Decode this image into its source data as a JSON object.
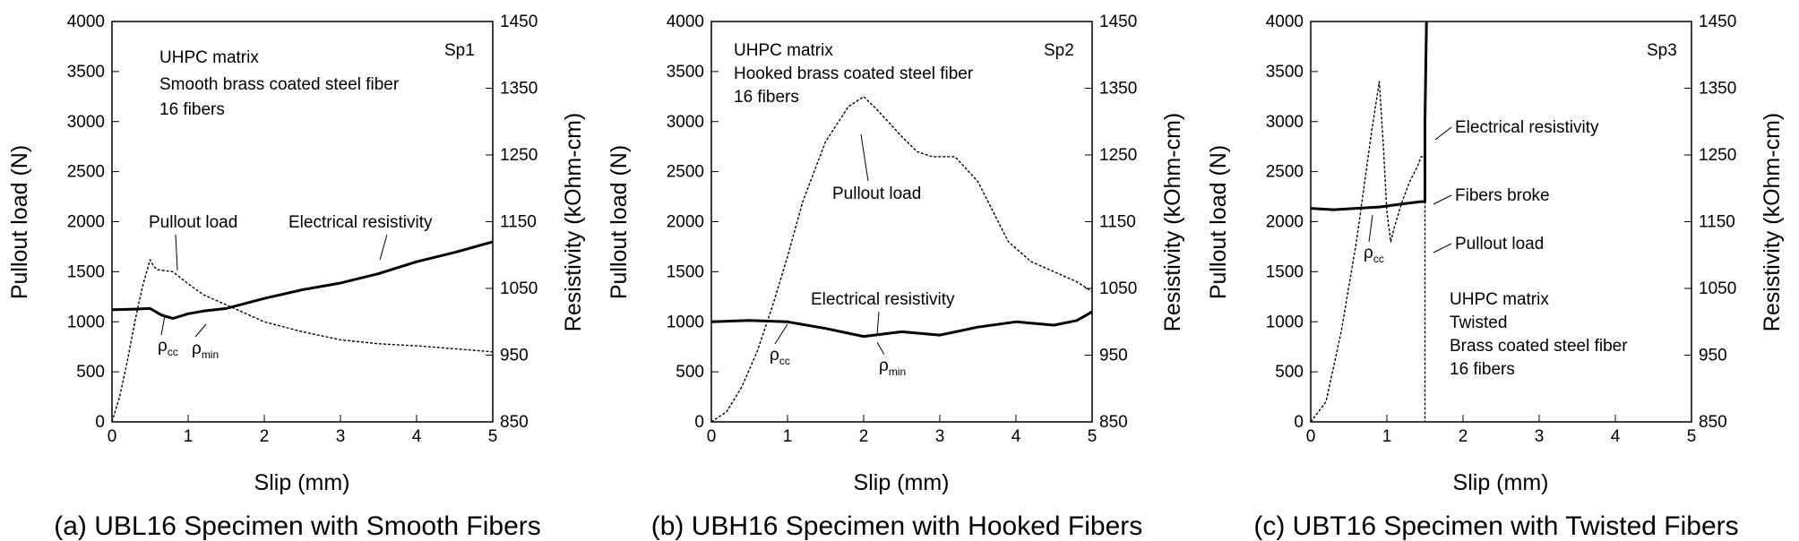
{
  "chart_data": [
    {
      "type": "line",
      "caption": "(a) UBL16 Specimen with Smooth Fibers",
      "xlabel": "Slip (mm)",
      "ylabel": "Pullout load (N)",
      "y2label": "Resistivity (kOhm-cm)",
      "xlim": [
        0,
        5
      ],
      "ylim": [
        0,
        4000
      ],
      "y2lim": [
        850,
        1450
      ],
      "x_ticks": [
        "0",
        "1",
        "2",
        "3",
        "4",
        "5"
      ],
      "y_ticks": [
        "0",
        "500",
        "1000",
        "1500",
        "2000",
        "2500",
        "3000",
        "3500",
        "4000"
      ],
      "y2_ticks": [
        "850",
        "950",
        "1050",
        "1150",
        "1250",
        "1350",
        "1450"
      ],
      "grid": false,
      "annotations": {
        "specimen": "Sp1",
        "matrix": "UHPC matrix",
        "fiber": "Smooth brass coated steel fiber",
        "count": "16 fibers",
        "load": "Pullout load",
        "resistivity": "Electrical resistivity",
        "rho": "ρ",
        "sub_cc": "cc",
        "sub_min": "min"
      },
      "series": [
        {
          "name": "Pullout load",
          "axis": "left",
          "x": [
            0,
            0.1,
            0.2,
            0.3,
            0.4,
            0.5,
            0.55,
            0.6,
            0.8,
            1.0,
            1.2,
            1.5,
            2.0,
            2.5,
            3.0,
            3.5,
            4.0,
            4.5,
            5.0
          ],
          "y": [
            0,
            250,
            600,
            1000,
            1350,
            1620,
            1550,
            1520,
            1500,
            1380,
            1270,
            1170,
            1000,
            900,
            820,
            780,
            760,
            730,
            700
          ]
        },
        {
          "name": "Electrical resistivity",
          "axis": "right",
          "x": [
            0,
            0.3,
            0.5,
            0.65,
            0.8,
            1.0,
            1.2,
            1.5,
            2.0,
            2.5,
            3.0,
            3.5,
            4.0,
            4.5,
            5.0
          ],
          "y": [
            1018,
            1019,
            1020,
            1010,
            1005,
            1012,
            1016,
            1020,
            1035,
            1048,
            1058,
            1072,
            1090,
            1104,
            1120
          ]
        }
      ]
    },
    {
      "type": "line",
      "caption": "(b) UBH16 Specimen with Hooked Fibers",
      "xlabel": "Slip (mm)",
      "ylabel": "Pullout load (N)",
      "y2label": "Resistivity (kOhm-cm)",
      "xlim": [
        0,
        5
      ],
      "ylim": [
        0,
        4000
      ],
      "y2lim": [
        850,
        1450
      ],
      "x_ticks": [
        "0",
        "1",
        "2",
        "3",
        "4",
        "5"
      ],
      "y_ticks": [
        "0",
        "500",
        "1000",
        "1500",
        "2000",
        "2500",
        "3000",
        "3500",
        "4000"
      ],
      "y2_ticks": [
        "850",
        "950",
        "1050",
        "1150",
        "1250",
        "1350",
        "1450"
      ],
      "grid": false,
      "annotations": {
        "specimen": "Sp2",
        "matrix": "UHPC matrix",
        "fiber": "Hooked brass coated steel fiber",
        "count": "16 fibers",
        "load": "Pullout load",
        "resistivity": "Electrical resistivity",
        "rho": "ρ",
        "sub_cc": "cc",
        "sub_min": "min"
      },
      "series": [
        {
          "name": "Pullout load",
          "axis": "left",
          "x": [
            0,
            0.2,
            0.4,
            0.6,
            0.8,
            1.0,
            1.2,
            1.5,
            1.8,
            2.0,
            2.2,
            2.5,
            2.7,
            2.9,
            3.2,
            3.5,
            3.7,
            3.9,
            4.2,
            4.5,
            4.8,
            5.0
          ],
          "y": [
            0,
            100,
            350,
            700,
            1150,
            1650,
            2200,
            2800,
            3150,
            3250,
            3100,
            2850,
            2700,
            2650,
            2650,
            2400,
            2100,
            1800,
            1600,
            1500,
            1400,
            1300
          ]
        },
        {
          "name": "Electrical resistivity",
          "axis": "right",
          "x": [
            0,
            0.5,
            1.0,
            1.5,
            2.0,
            2.5,
            3.0,
            3.5,
            4.0,
            4.5,
            4.8,
            5.0
          ],
          "y": [
            1000,
            1002,
            1000,
            990,
            978,
            985,
            980,
            992,
            1000,
            995,
            1002,
            1015
          ]
        }
      ]
    },
    {
      "type": "line",
      "caption": "(c) UBT16 Specimen with Twisted Fibers",
      "xlabel": "Slip (mm)",
      "ylabel": "Pullout load (N)",
      "y2label": "Resistivity (kOhm-cm)",
      "xlim": [
        0,
        5
      ],
      "ylim": [
        0,
        4000
      ],
      "y2lim": [
        850,
        1450
      ],
      "x_ticks": [
        "0",
        "1",
        "2",
        "3",
        "4",
        "5"
      ],
      "y_ticks": [
        "0",
        "500",
        "1000",
        "1500",
        "2000",
        "2500",
        "3000",
        "3500",
        "4000"
      ],
      "y2_ticks": [
        "850",
        "950",
        "1050",
        "1150",
        "1250",
        "1350",
        "1450"
      ],
      "grid": false,
      "annotations": {
        "specimen": "Sp3",
        "resistivity": "Electrical resistivity",
        "broke": "Fibers broke",
        "load": "Pullout load",
        "matrix": "UHPC matrix",
        "shape": "Twisted",
        "fiber": "Brass coated steel fiber",
        "count": "16 fibers",
        "rho": "ρ",
        "sub_cc": "cc"
      },
      "series": [
        {
          "name": "Pullout load",
          "axis": "left",
          "x": [
            0,
            0.2,
            0.4,
            0.6,
            0.8,
            0.9,
            0.95,
            1.0,
            1.05,
            1.1,
            1.2,
            1.3,
            1.4,
            1.45,
            1.5,
            1.5
          ],
          "y": [
            0,
            200,
            900,
            1800,
            2900,
            3400,
            2800,
            2100,
            1800,
            1950,
            2200,
            2400,
            2550,
            2650,
            2650,
            0
          ]
        },
        {
          "name": "Electrical resistivity",
          "axis": "right",
          "x": [
            0,
            0.3,
            0.6,
            0.9,
            1.1,
            1.3,
            1.45,
            1.5,
            1.5,
            1.52
          ],
          "y": [
            1170,
            1168,
            1170,
            1172,
            1175,
            1178,
            1180,
            1180,
            1300,
            1450
          ]
        }
      ]
    }
  ]
}
